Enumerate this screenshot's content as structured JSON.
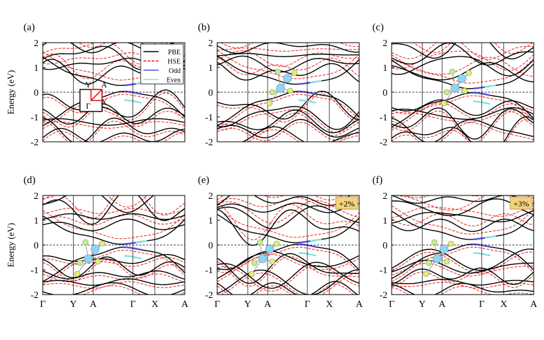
{
  "chart_data": {
    "type": "line",
    "ylabel": "Energy (eV)",
    "ylim": [
      -2,
      2
    ],
    "yticks": [
      "2",
      "1",
      "0",
      "-1",
      "-2"
    ],
    "kpath": [
      "Γ",
      "Y",
      "A",
      "Γ",
      "X",
      "A"
    ],
    "fermi_level": 0,
    "legend": [
      "PBE",
      "HSE",
      "Odd",
      "Even"
    ],
    "colors": {
      "PBE": "#000000",
      "HSE": "#e8211b",
      "Odd": "#5b4bd6",
      "Even": "#7fe3df",
      "bz_path": "#e8211b",
      "strain_box": "#f5d27e"
    },
    "brillouin_zone": {
      "labels": [
        "Y",
        "A",
        "Γ",
        "X"
      ]
    },
    "panels": [
      {
        "label": "(a)",
        "strain": "",
        "gap": 0.3,
        "vbm": 0.0,
        "cbm": 0.3
      },
      {
        "label": "(b)",
        "strain": "",
        "gap": 0.35,
        "vbm": 0.0,
        "cbm": 0.35
      },
      {
        "label": "(c)",
        "strain": "",
        "gap": 0.22,
        "vbm": -0.05,
        "cbm": 0.17
      },
      {
        "label": "(d)",
        "strain": "",
        "gap": 0.18,
        "vbm": -0.12,
        "cbm": 0.06
      },
      {
        "label": "(e)",
        "strain": "+2%",
        "gap": 0.12,
        "vbm": 0.0,
        "cbm": 0.12
      },
      {
        "label": "(f)",
        "strain": "+3%",
        "gap": 0.25,
        "vbm": 0.0,
        "cbm": 0.25
      }
    ]
  }
}
